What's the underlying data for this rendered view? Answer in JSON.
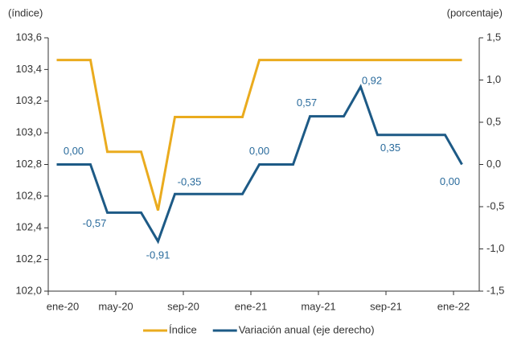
{
  "chart_data": {
    "type": "line",
    "y_label": "(índice)",
    "y2_label": "(porcentaje)",
    "categories": [
      "ene-20",
      null,
      null,
      null,
      "may-20",
      null,
      null,
      null,
      "sep-20",
      null,
      null,
      null,
      "ene-21",
      null,
      null,
      null,
      "may-21",
      null,
      null,
      null,
      "sep-21",
      null,
      null,
      null,
      "ene-22"
    ],
    "series": [
      {
        "name": "Índice",
        "color": "#eaab1e",
        "values": [
          103.46,
          103.46,
          103.46,
          102.88,
          102.88,
          102.88,
          102.51,
          103.1,
          103.1,
          103.1,
          103.1,
          103.1,
          103.46,
          103.46,
          103.46,
          103.46,
          103.46,
          103.46,
          103.46,
          103.46,
          103.46,
          103.46,
          103.46,
          103.46,
          103.46
        ]
      },
      {
        "name": "Variación anual (eje derecho)",
        "color": "#1d5a86",
        "axis": "y2",
        "values": [
          0.0,
          0.0,
          0.0,
          -0.57,
          -0.57,
          -0.57,
          -0.91,
          -0.35,
          -0.35,
          -0.35,
          -0.35,
          -0.35,
          0.0,
          0.0,
          0.0,
          0.57,
          0.57,
          0.57,
          0.92,
          0.35,
          0.35,
          0.35,
          0.35,
          0.35,
          0.0
        ],
        "value_labels": [
          null,
          "0,00",
          null,
          "-0,57",
          null,
          null,
          "-0,91",
          "-0,35",
          null,
          null,
          null,
          null,
          "0,00",
          null,
          null,
          "0,57",
          null,
          null,
          "0,92",
          "0,35",
          null,
          null,
          null,
          null,
          "0,00"
        ]
      }
    ],
    "ylim": [
      102.0,
      103.6
    ],
    "yticks": [
      {
        "value": 102.0,
        "label": "102,0"
      },
      {
        "value": 102.2,
        "label": "102,2"
      },
      {
        "value": 102.4,
        "label": "102,4"
      },
      {
        "value": 102.6,
        "label": "102,6"
      },
      {
        "value": 102.8,
        "label": "102,8"
      },
      {
        "value": 103.0,
        "label": "103,0"
      },
      {
        "value": 103.2,
        "label": "103,2"
      },
      {
        "value": 103.4,
        "label": "103,4"
      },
      {
        "value": 103.6,
        "label": "103,6"
      }
    ],
    "y2lim": [
      -1.5,
      1.5
    ],
    "y2ticks": [
      {
        "value": -1.5,
        "label": "-1,5"
      },
      {
        "value": -1.0,
        "label": "-1,0"
      },
      {
        "value": -0.5,
        "label": "-0,5"
      },
      {
        "value": 0.0,
        "label": "0,0"
      },
      {
        "value": 0.5,
        "label": "0,5"
      },
      {
        "value": 1.0,
        "label": "1,0"
      },
      {
        "value": 1.5,
        "label": "1,5"
      }
    ],
    "legend": "bottom",
    "grid": false
  }
}
